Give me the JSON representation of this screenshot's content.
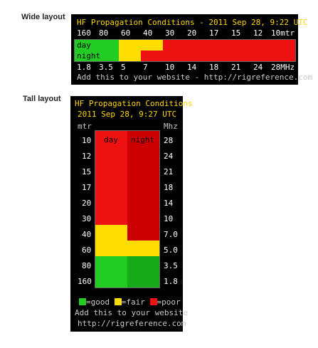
{
  "wide": {
    "section_label": "Wide layout",
    "title": "HF Propagation Conditions - 2011 Sep 28, 9:22 UTC",
    "meters": [
      "160",
      "80",
      "60",
      "40",
      "30",
      "20",
      "17",
      "15",
      "12",
      "10mtr"
    ],
    "day_label": "day",
    "night_label": "night",
    "mhz": [
      "1.8",
      "3.5",
      "5",
      "7",
      "10",
      "14",
      "18",
      "21",
      "24",
      "28MHz"
    ],
    "footer": "Add this to your website - http://rigreference.com",
    "day_conditions": [
      "good",
      "good",
      "fair",
      "fair",
      "poor",
      "poor",
      "poor",
      "poor",
      "poor",
      "poor"
    ],
    "night_conditions": [
      "good",
      "good",
      "fair",
      "poor",
      "poor",
      "poor",
      "poor",
      "poor",
      "poor",
      "poor"
    ]
  },
  "tall": {
    "section_label": "Tall layout",
    "title_line1": "HF Propagation Conditions",
    "title_line2": "2011 Sep 28, 9:27 UTC",
    "mtr_header": "mtr",
    "mhz_header": "Mhz",
    "day_label": "day",
    "night_label": "night",
    "meters": [
      "10",
      "12",
      "15",
      "17",
      "20",
      "30",
      "40",
      "60",
      "80",
      "160"
    ],
    "mhz": [
      "28",
      "24",
      "21",
      "18",
      "14",
      "10",
      "7.0",
      "5.0",
      "3.5",
      "1.8"
    ],
    "day_conditions": [
      "poor",
      "poor",
      "poor",
      "poor",
      "poor",
      "poor",
      "fair",
      "fair",
      "good",
      "good"
    ],
    "night_conditions": [
      "poor",
      "poor",
      "poor",
      "poor",
      "poor",
      "poor",
      "poor",
      "fair",
      "good",
      "good"
    ],
    "legend": {
      "good": "=good",
      "fair": "=fair",
      "poor": "=poor"
    },
    "footer_line1": "Add this to your website",
    "footer_line2": "http://rigreference.com"
  },
  "colors": {
    "good": "#22cc22",
    "fair": "#ffdd00",
    "poor": "#ee1111",
    "poor_night": "#cc0000",
    "good_night": "#18aa18",
    "title": "#ffd700"
  }
}
